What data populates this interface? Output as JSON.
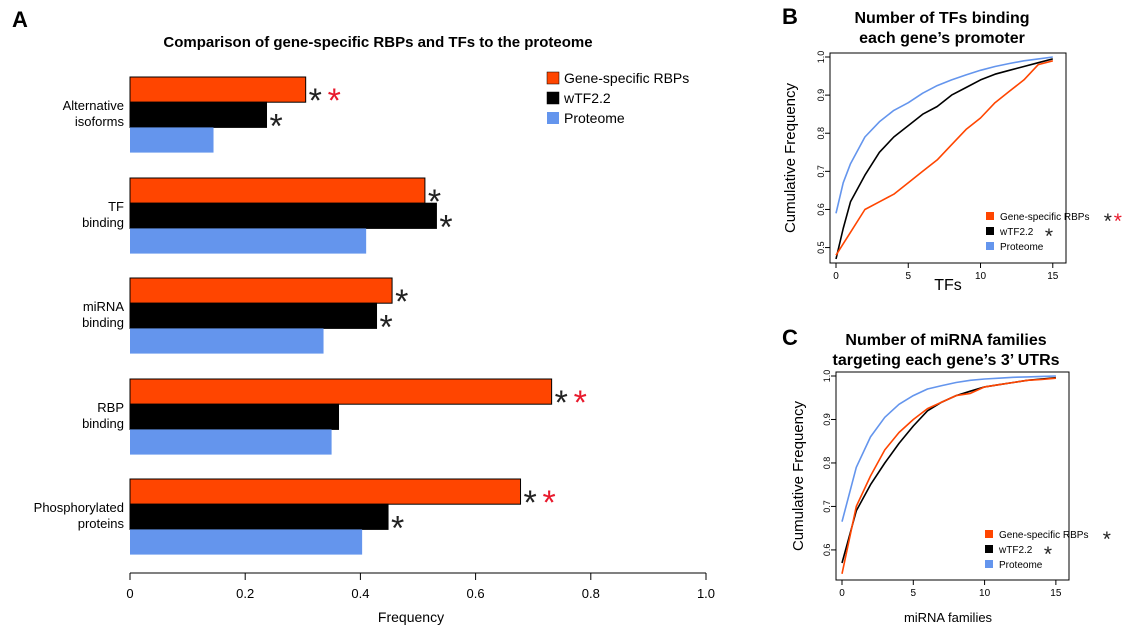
{
  "colors": {
    "rbp": "#FF4500",
    "tf": "#000000",
    "proteome": "#6495ED",
    "red_star": "#E8192C",
    "star": "#222222"
  },
  "panels": {
    "a": "A",
    "b": "B",
    "c": "C"
  },
  "chart_data": [
    {
      "type": "bar",
      "orientation": "horizontal",
      "title": "Comparison of gene-specific RBPs and TFs to the proteome",
      "xlabel": "Frequency",
      "xlim": [
        0,
        1.0
      ],
      "xticks": [
        "0",
        "0.2",
        "0.4",
        "0.6",
        "0.8",
        "1.0"
      ],
      "categories": [
        [
          "Alternative",
          "isoforms"
        ],
        [
          "TF",
          "binding"
        ],
        [
          "miRNA",
          "binding"
        ],
        [
          "RBP",
          "binding"
        ],
        [
          "Phosphorylated",
          "proteins"
        ]
      ],
      "series": [
        {
          "name": "Gene-specific RBPs",
          "values": [
            0.305,
            0.512,
            0.455,
            0.732,
            0.678
          ],
          "stars": [
            [
              "*",
              "r*"
            ],
            [
              "*"
            ],
            [
              "*"
            ],
            [
              "*",
              "r*"
            ],
            [
              "*",
              "r*"
            ]
          ]
        },
        {
          "name": "wTF2.2",
          "values": [
            0.237,
            0.532,
            0.428,
            0.362,
            0.448
          ],
          "stars": [
            [
              "*"
            ],
            [
              "*"
            ],
            [
              "*"
            ],
            [],
            [
              "*"
            ]
          ]
        },
        {
          "name": "Proteome",
          "values": [
            0.145,
            0.41,
            0.336,
            0.35,
            0.403
          ],
          "stars": [
            [],
            [],
            [],
            [],
            []
          ]
        }
      ],
      "legend": "top-right",
      "grid": false
    },
    {
      "type": "line",
      "title": [
        "Number of TFs binding",
        "each gene’s promoter"
      ],
      "xlabel": "TFs",
      "ylabel": "Cumulative Frequency",
      "xlim": [
        0,
        15.5
      ],
      "ylim": [
        0.47,
        1.0
      ],
      "xticks": [
        0,
        5,
        10,
        15
      ],
      "yticks": [
        "0.5",
        "0.6",
        "0.7",
        "0.8",
        "0.9",
        "1.0"
      ],
      "series": [
        {
          "name": "Gene-specific RBPs",
          "stars": [
            "*",
            "r*"
          ],
          "x": [
            0,
            0.5,
            1,
            2,
            3,
            4,
            5,
            6,
            7,
            8,
            9,
            10,
            11,
            12,
            13,
            14,
            15
          ],
          "y": [
            0.48,
            0.51,
            0.54,
            0.6,
            0.62,
            0.64,
            0.67,
            0.7,
            0.73,
            0.77,
            0.81,
            0.84,
            0.88,
            0.91,
            0.94,
            0.98,
            0.99
          ]
        },
        {
          "name": "wTF2.2",
          "stars": [
            "*"
          ],
          "x": [
            0,
            0.5,
            1,
            2,
            3,
            4,
            5,
            6,
            7,
            8,
            9,
            10,
            11,
            12,
            13,
            14,
            15
          ],
          "y": [
            0.47,
            0.55,
            0.62,
            0.69,
            0.75,
            0.79,
            0.82,
            0.85,
            0.87,
            0.9,
            0.92,
            0.94,
            0.955,
            0.965,
            0.975,
            0.985,
            0.995
          ]
        },
        {
          "name": "Proteome",
          "stars": [],
          "x": [
            0,
            0.5,
            1,
            2,
            3,
            4,
            5,
            6,
            7,
            8,
            9,
            10,
            11,
            12,
            13,
            14,
            15
          ],
          "y": [
            0.59,
            0.67,
            0.72,
            0.79,
            0.83,
            0.86,
            0.88,
            0.905,
            0.925,
            0.94,
            0.953,
            0.965,
            0.975,
            0.983,
            0.99,
            0.995,
            1.0
          ]
        }
      ],
      "legend": "bottom-right",
      "grid": false
    },
    {
      "type": "line",
      "title": [
        "Number of miRNA families",
        "targeting each gene’s 3’ UTRs"
      ],
      "xlabel": "miRNA families",
      "ylabel": "Cumulative Frequency",
      "xlim": [
        0,
        15.5
      ],
      "ylim": [
        0.54,
        1.0
      ],
      "xticks": [
        0,
        5,
        10,
        15
      ],
      "yticks": [
        "0.6",
        "0.7",
        "0.8",
        "0.9",
        "1.0"
      ],
      "series": [
        {
          "name": "Gene-specific RBPs",
          "stars": [
            "*"
          ],
          "x": [
            0,
            1,
            2,
            3,
            4,
            5,
            6,
            7,
            8,
            9,
            10,
            11,
            12,
            13,
            14,
            15
          ],
          "y": [
            0.545,
            0.7,
            0.77,
            0.83,
            0.87,
            0.9,
            0.925,
            0.94,
            0.955,
            0.96,
            0.975,
            0.98,
            0.985,
            0.99,
            0.992,
            0.995
          ]
        },
        {
          "name": "wTF2.2",
          "stars": [
            "*"
          ],
          "x": [
            0,
            1,
            2,
            3,
            4,
            5,
            6,
            7,
            8,
            9,
            10,
            11,
            12,
            13,
            14,
            15
          ],
          "y": [
            0.57,
            0.69,
            0.75,
            0.8,
            0.845,
            0.885,
            0.92,
            0.94,
            0.955,
            0.965,
            0.975,
            0.98,
            0.985,
            0.99,
            0.993,
            0.996
          ]
        },
        {
          "name": "Proteome",
          "stars": [],
          "x": [
            0,
            1,
            2,
            3,
            4,
            5,
            6,
            7,
            8,
            9,
            10,
            11,
            12,
            13,
            14,
            15
          ],
          "y": [
            0.665,
            0.79,
            0.86,
            0.905,
            0.935,
            0.955,
            0.97,
            0.978,
            0.985,
            0.99,
            0.993,
            0.995,
            0.997,
            0.998,
            0.999,
            1.0
          ]
        }
      ],
      "legend": "bottom-right",
      "grid": false
    }
  ]
}
